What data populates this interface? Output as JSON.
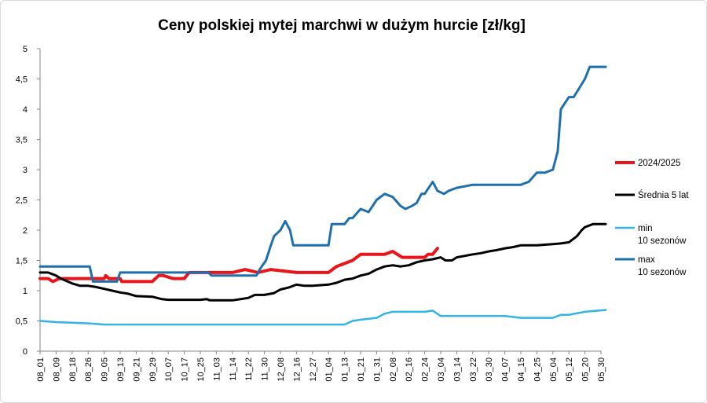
{
  "chart_data": {
    "type": "line",
    "title": "Ceny polskiej mytej marchwi w dużym hurcie [zł/kg]",
    "xlabel": "",
    "ylabel": "",
    "ylim": [
      0,
      5
    ],
    "y_ticks": [
      "0",
      "0,5",
      "1",
      "1,5",
      "2",
      "2,5",
      "3",
      "3,5",
      "4",
      "4,5",
      "5"
    ],
    "grid": "none",
    "legend_position": "right",
    "categories": [
      "08_01",
      "08_09",
      "08_18",
      "08_26",
      "09_05",
      "09_13",
      "09_21",
      "09_29",
      "10_07",
      "10_17",
      "10_25",
      "11_03",
      "11_14",
      "11_22",
      "11_30",
      "12_08",
      "12_16",
      "12_27",
      "01_04",
      "01_13",
      "01_21",
      "01_31",
      "02_08",
      "02_16",
      "02_24",
      "03_04",
      "03_14",
      "03_22",
      "03_30",
      "04_07",
      "04_15",
      "04_25",
      "05_04",
      "05_12",
      "05_20",
      "05_30"
    ],
    "series": [
      {
        "name": "2024/2025",
        "color": "#e8151b",
        "stroke_width": 4,
        "x": [
          0,
          0.5,
          0.8,
          1.2,
          3,
          4,
          4.1,
          4.3,
          5,
          5.1,
          7,
          7.4,
          7.7,
          8.3,
          9,
          9.3,
          12,
          12.8,
          13.6,
          14.4,
          16,
          18,
          18.5,
          19,
          19.5,
          20,
          21.5,
          22,
          22.6,
          22.9,
          24,
          24.2,
          24.5,
          24.8
        ],
        "values": [
          1.2,
          1.2,
          1.15,
          1.2,
          1.2,
          1.2,
          1.25,
          1.2,
          1.2,
          1.15,
          1.15,
          1.25,
          1.25,
          1.2,
          1.2,
          1.3,
          1.3,
          1.35,
          1.3,
          1.35,
          1.3,
          1.3,
          1.4,
          1.45,
          1.5,
          1.6,
          1.6,
          1.65,
          1.55,
          1.55,
          1.55,
          1.6,
          1.6,
          1.7
        ]
      },
      {
        "name": "Średnia 5 lat",
        "color": "#000000",
        "stroke_width": 3,
        "x": [
          0,
          0.5,
          1,
          1.3,
          2,
          2.5,
          3,
          3.5,
          4,
          4.5,
          5,
          5.5,
          6,
          7,
          7.6,
          8,
          9,
          10,
          10.4,
          10.6,
          12,
          12.5,
          13,
          13.4,
          14,
          14.6,
          15,
          15.5,
          16,
          16.5,
          17,
          18,
          18.5,
          19,
          19.5,
          20,
          20.5,
          21,
          21.5,
          22,
          22.5,
          23,
          23.5,
          24,
          24.5,
          25,
          25.3,
          25.7,
          26,
          27,
          27.5,
          28,
          28.5,
          29,
          29.5,
          30,
          31,
          31.5,
          32,
          32.5,
          33,
          33.5,
          33.8,
          34,
          34.5,
          35,
          35.3
        ],
        "values": [
          1.3,
          1.3,
          1.25,
          1.2,
          1.12,
          1.08,
          1.08,
          1.06,
          1.03,
          1.0,
          0.97,
          0.95,
          0.91,
          0.9,
          0.86,
          0.85,
          0.85,
          0.85,
          0.86,
          0.84,
          0.84,
          0.86,
          0.88,
          0.93,
          0.93,
          0.96,
          1.02,
          1.05,
          1.1,
          1.08,
          1.08,
          1.1,
          1.13,
          1.18,
          1.2,
          1.25,
          1.28,
          1.35,
          1.4,
          1.42,
          1.4,
          1.42,
          1.47,
          1.5,
          1.52,
          1.55,
          1.5,
          1.5,
          1.55,
          1.6,
          1.62,
          1.65,
          1.67,
          1.7,
          1.72,
          1.75,
          1.75,
          1.76,
          1.77,
          1.78,
          1.8,
          1.9,
          2.0,
          2.05,
          2.1,
          2.1,
          2.1
        ]
      },
      {
        "name": "min\n10 sezonów",
        "color": "#33b3e6",
        "stroke_width": 2.5,
        "x": [
          0,
          1,
          3,
          4,
          19,
          19.5,
          20,
          21,
          21.5,
          22,
          23,
          24,
          24.5,
          25,
          29,
          30,
          31,
          31.5,
          32,
          32.5,
          33,
          34,
          35.3
        ],
        "values": [
          0.5,
          0.48,
          0.46,
          0.44,
          0.44,
          0.5,
          0.52,
          0.55,
          0.62,
          0.65,
          0.65,
          0.65,
          0.67,
          0.58,
          0.58,
          0.55,
          0.55,
          0.55,
          0.55,
          0.6,
          0.6,
          0.65,
          0.68
        ]
      },
      {
        "name": "max\n10 sezonów",
        "color": "#1f6fad",
        "stroke_width": 3,
        "x": [
          0,
          3.1,
          3.3,
          4.8,
          5,
          10.5,
          10.7,
          13.5,
          13.7,
          14.1,
          14.4,
          14.6,
          15,
          15.3,
          15.6,
          15.8,
          16.3,
          17,
          18,
          18.2,
          18.5,
          19,
          19.3,
          19.5,
          20,
          20.5,
          21,
          21.5,
          22,
          22.5,
          22.8,
          23.2,
          23.5,
          23.8,
          24,
          24.5,
          24.8,
          25.2,
          25.5,
          26,
          27,
          30,
          30.5,
          31,
          31.5,
          32,
          32.3,
          32.5,
          33,
          33.3,
          34,
          34.3,
          34.5,
          35.3
        ],
        "values": [
          1.4,
          1.4,
          1.15,
          1.15,
          1.3,
          1.3,
          1.25,
          1.25,
          1.35,
          1.5,
          1.75,
          1.9,
          2.0,
          2.15,
          2.0,
          1.75,
          1.75,
          1.75,
          1.75,
          2.1,
          2.1,
          2.1,
          2.2,
          2.2,
          2.35,
          2.3,
          2.5,
          2.6,
          2.55,
          2.4,
          2.35,
          2.4,
          2.45,
          2.6,
          2.6,
          2.8,
          2.65,
          2.6,
          2.65,
          2.7,
          2.75,
          2.75,
          2.8,
          2.95,
          2.95,
          3.0,
          3.3,
          4.0,
          4.2,
          4.2,
          4.5,
          4.7,
          4.7,
          4.7
        ]
      }
    ]
  }
}
